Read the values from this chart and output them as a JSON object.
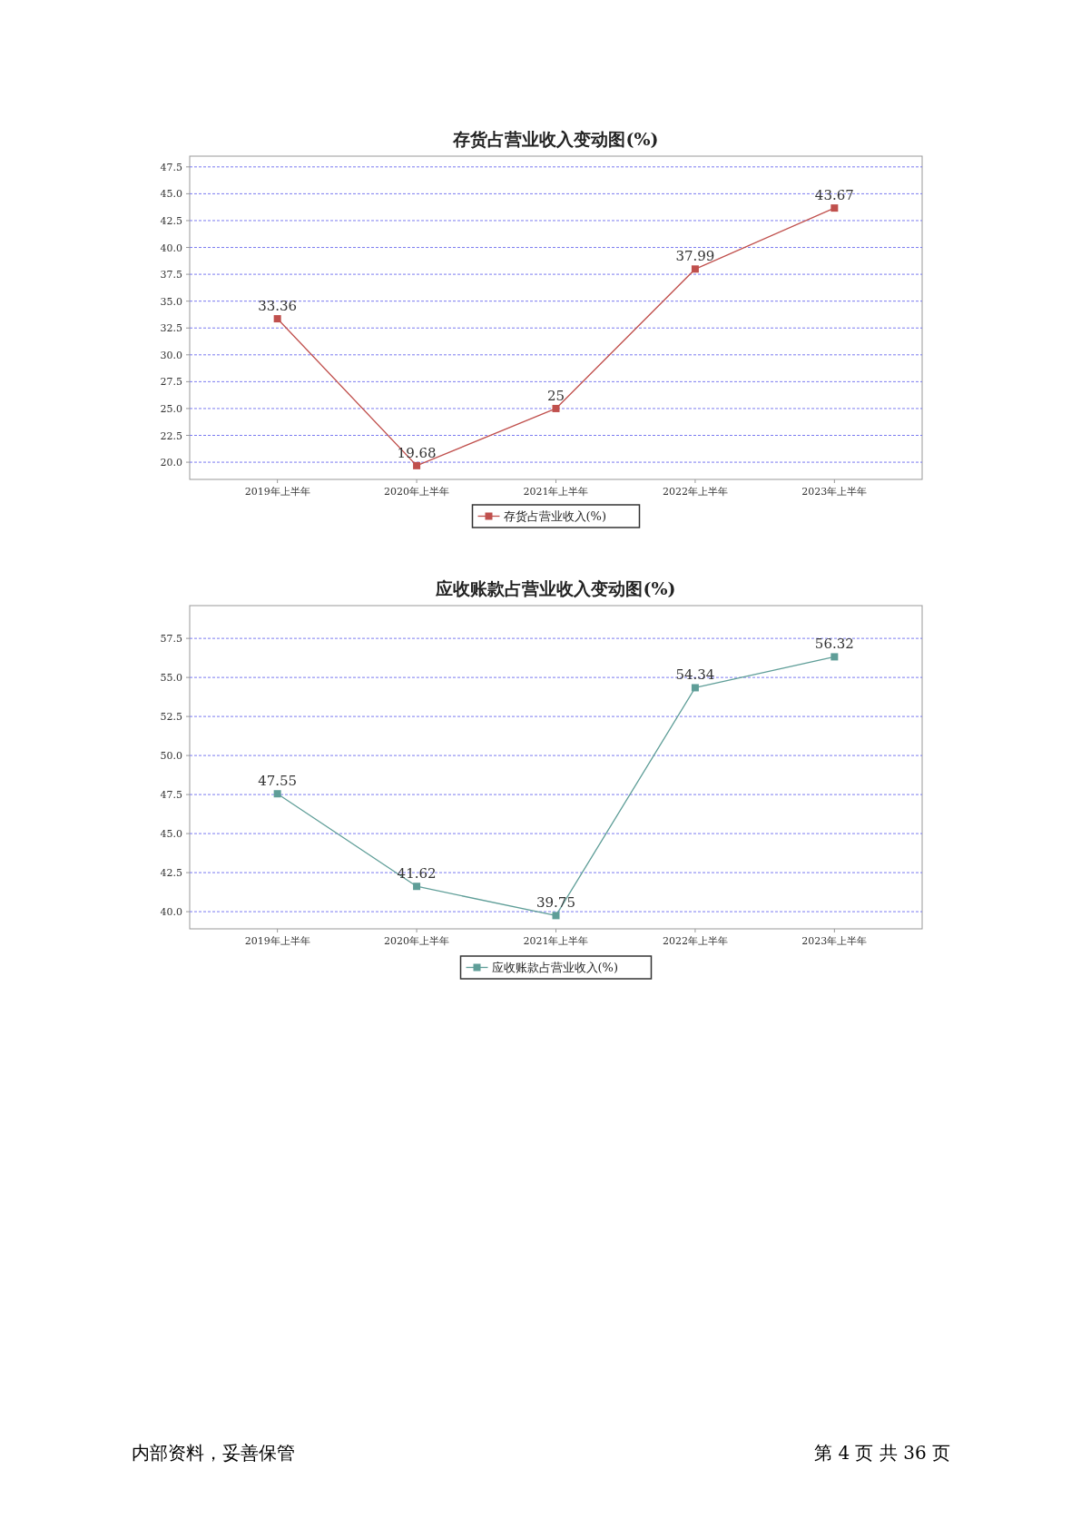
{
  "chart_data": [
    {
      "type": "line",
      "title": "存货占营业收入变动图(%)",
      "categories": [
        "2019年上半年",
        "2020年上半年",
        "2021年上半年",
        "2022年上半年",
        "2023年上半年"
      ],
      "series": [
        {
          "name": "存货占营业收入(%)",
          "color": "#c0504d",
          "values": [
            33.36,
            19.68,
            25,
            37.99,
            43.67
          ]
        }
      ],
      "ylim": [
        18.4,
        48.5
      ],
      "yticks": [
        {
          "value": 20,
          "label": "20.0"
        },
        {
          "value": 22.5,
          "label": "22.5"
        },
        {
          "value": 25,
          "label": "25.0"
        },
        {
          "value": 27.5,
          "label": "27.5"
        },
        {
          "value": 30,
          "label": "30.0"
        },
        {
          "value": 32.5,
          "label": "32.5"
        },
        {
          "value": 35,
          "label": "35.0"
        },
        {
          "value": 37.5,
          "label": "37.5"
        },
        {
          "value": 40,
          "label": "40.0"
        },
        {
          "value": 42.5,
          "label": "42.5"
        },
        {
          "value": 45,
          "label": "45.0"
        },
        {
          "value": 47.5,
          "label": "47.5"
        }
      ],
      "grid": "y",
      "legend": "bottom",
      "marker": "square",
      "line_style": "solid",
      "data_labels": true
    },
    {
      "type": "line",
      "title": "应收账款占营业收入变动图(%)",
      "categories": [
        "2019年上半年",
        "2020年上半年",
        "2021年上半年",
        "2022年上半年",
        "2023年上半年"
      ],
      "series": [
        {
          "name": "应收账款占营业收入(%)",
          "color": "#5f9e98",
          "values": [
            47.55,
            41.62,
            39.75,
            54.34,
            56.32
          ]
        }
      ],
      "ylim": [
        38.9,
        59.6
      ],
      "yticks": [
        {
          "value": 40,
          "label": "40.0"
        },
        {
          "value": 42.5,
          "label": "42.5"
        },
        {
          "value": 45,
          "label": "45.0"
        },
        {
          "value": 47.5,
          "label": "47.5"
        },
        {
          "value": 50,
          "label": "50.0"
        },
        {
          "value": 52.5,
          "label": "52.5"
        },
        {
          "value": 55,
          "label": "55.0"
        },
        {
          "value": 57.5,
          "label": "57.5"
        }
      ],
      "grid": "y",
      "legend": "bottom",
      "marker": "square",
      "line_style": "solid",
      "data_labels": true
    },
    {
      "type": "other",
      "annotations": [
        "内部资料，妥善保管",
        "第 4 页   共 36 页"
      ]
    }
  ]
}
